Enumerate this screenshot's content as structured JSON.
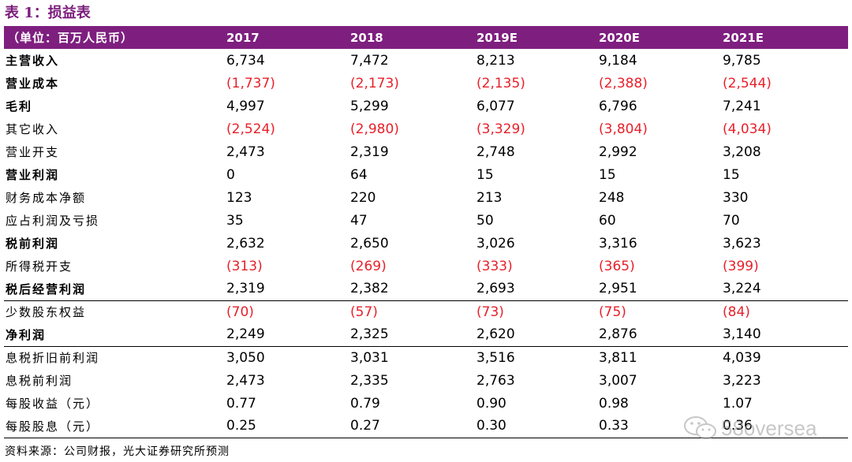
{
  "title": "表 1：损益表",
  "header": {
    "unit_label": "（单位：百万人民币）",
    "years": [
      "2017",
      "2018",
      "2019E",
      "2020E",
      "2021E"
    ]
  },
  "rows": [
    {
      "label": "主营收入",
      "values": [
        "6,734",
        "7,472",
        "8,213",
        "9,184",
        "9,785"
      ],
      "bold": true,
      "negative": false
    },
    {
      "label": "营业成本",
      "values": [
        "(1,737)",
        "(2,173)",
        "(2,135)",
        "(2,388)",
        "(2,544)"
      ],
      "bold": true,
      "negative": true
    },
    {
      "label": "毛利",
      "values": [
        "4,997",
        "5,299",
        "6,077",
        "6,796",
        "7,241"
      ],
      "bold": true,
      "negative": false
    },
    {
      "label": "其它收入",
      "values": [
        "(2,524)",
        "(2,980)",
        "(3,329)",
        "(3,804)",
        "(4,034)"
      ],
      "bold": false,
      "negative": true
    },
    {
      "label": "营业开支",
      "values": [
        "2,473",
        "2,319",
        "2,748",
        "2,992",
        "3,208"
      ],
      "bold": false,
      "negative": false
    },
    {
      "label": "营业利润",
      "values": [
        "0",
        "64",
        "15",
        "15",
        "15"
      ],
      "bold": true,
      "negative": false
    },
    {
      "label": "财务成本净额",
      "values": [
        "123",
        "220",
        "213",
        "248",
        "330"
      ],
      "bold": false,
      "negative": false
    },
    {
      "label": "应占利润及亏损",
      "values": [
        "35",
        "47",
        "50",
        "60",
        "70"
      ],
      "bold": false,
      "negative": false
    },
    {
      "label": "税前利润",
      "values": [
        "2,632",
        "2,650",
        "3,026",
        "3,316",
        "3,623"
      ],
      "bold": true,
      "negative": false
    },
    {
      "label": "所得税开支",
      "values": [
        "(313)",
        "(269)",
        "(333)",
        "(365)",
        "(399)"
      ],
      "bold": false,
      "negative": true
    },
    {
      "label": "税后经营利润",
      "values": [
        "2,319",
        "2,382",
        "2,693",
        "2,951",
        "3,224"
      ],
      "bold": true,
      "negative": false,
      "rule": true
    },
    {
      "label": "少数股东权益",
      "values": [
        "(70)",
        "(57)",
        "(73)",
        "(75)",
        "(84)"
      ],
      "bold": false,
      "negative": true
    },
    {
      "label": "净利润",
      "values": [
        "2,249",
        "2,325",
        "2,620",
        "2,876",
        "3,140"
      ],
      "bold": true,
      "negative": false,
      "rule": true
    },
    {
      "label": "息税折旧前利润",
      "values": [
        "3,050",
        "3,031",
        "3,516",
        "3,811",
        "4,039"
      ],
      "bold": false,
      "negative": false
    },
    {
      "label": "息税前利润",
      "values": [
        "2,473",
        "2,335",
        "2,763",
        "3,007",
        "3,223"
      ],
      "bold": false,
      "negative": false
    },
    {
      "label": "每股收益（元）",
      "values": [
        "0.77",
        "0.79",
        "0.90",
        "0.98",
        "1.07"
      ],
      "bold": false,
      "negative": false
    },
    {
      "label": "每股股息（元）",
      "values": [
        "0.25",
        "0.27",
        "0.30",
        "0.33",
        "0.36"
      ],
      "bold": false,
      "negative": false,
      "rule": true
    }
  ],
  "source_note": "资料来源：公司财报，光大证券研究所预测",
  "watermark": {
    "text": "58oversea",
    "icon": "wechat-icon"
  }
}
